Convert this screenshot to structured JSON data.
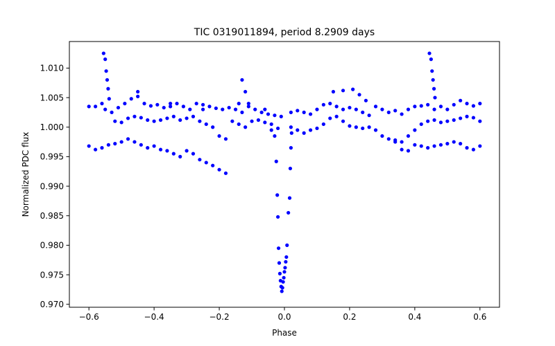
{
  "chart_data": {
    "type": "scatter",
    "title": "TIC 0319011894, period 8.2909 days",
    "xlabel": "Phase",
    "ylabel": "Normalized PDC flux",
    "xlim": [
      -0.66,
      0.66
    ],
    "ylim": [
      0.9695,
      1.0145
    ],
    "xticks": [
      -0.6,
      -0.4,
      -0.2,
      0.0,
      0.2,
      0.4,
      0.6
    ],
    "xtick_labels": [
      "−0.6",
      "−0.4",
      "−0.2",
      "0.0",
      "0.2",
      "0.4",
      "0.6"
    ],
    "yticks": [
      0.97,
      0.975,
      0.98,
      0.985,
      0.99,
      0.995,
      1.0,
      1.005,
      1.01
    ],
    "ytick_labels": [
      "0.970",
      "0.975",
      "0.980",
      "0.985",
      "0.990",
      "0.995",
      "1.000",
      "1.005",
      "1.010"
    ],
    "grid": false,
    "marker_color": "#0000ff",
    "series": [
      {
        "points": [
          [
            -0.6,
            1.0035
          ],
          [
            -0.58,
            1.0035
          ],
          [
            -0.56,
            1.004
          ],
          [
            -0.55,
            1.003
          ],
          [
            -0.53,
            1.0025
          ],
          [
            -0.51,
            1.0033
          ],
          [
            -0.49,
            1.004
          ],
          [
            -0.47,
            1.0048
          ],
          [
            -0.45,
            1.0052
          ],
          [
            -0.43,
            1.004
          ],
          [
            -0.41,
            1.0036
          ],
          [
            -0.39,
            1.0038
          ],
          [
            -0.37,
            1.0033
          ],
          [
            -0.35,
            1.0035
          ],
          [
            -0.33,
            1.004
          ],
          [
            -0.31,
            1.0035
          ],
          [
            -0.29,
            1.003
          ],
          [
            -0.27,
            1.004
          ],
          [
            -0.25,
            1.0038
          ],
          [
            -0.23,
            1.0035
          ],
          [
            -0.21,
            1.0032
          ],
          [
            -0.19,
            1.003
          ],
          [
            -0.17,
            1.0033
          ],
          [
            -0.15,
            1.003
          ],
          [
            -0.13,
            1.0025
          ],
          [
            -0.11,
            1.0035
          ],
          [
            -0.09,
            1.003
          ],
          [
            -0.07,
            1.0025
          ],
          [
            -0.05,
            1.0022
          ],
          [
            -0.03,
            1.002
          ],
          [
            -0.01,
            1.0018
          ],
          [
            0.02,
            1.0025
          ],
          [
            0.04,
            1.0028
          ],
          [
            0.06,
            1.0025
          ],
          [
            0.08,
            1.0022
          ],
          [
            0.1,
            1.003
          ],
          [
            0.12,
            1.0038
          ],
          [
            0.14,
            1.004
          ],
          [
            0.16,
            1.0035
          ],
          [
            0.18,
            1.003
          ],
          [
            0.2,
            1.0033
          ],
          [
            0.22,
            1.003
          ],
          [
            0.24,
            1.0025
          ],
          [
            0.26,
            1.002
          ],
          [
            0.28,
            1.0035
          ],
          [
            0.3,
            1.003
          ],
          [
            0.32,
            1.0025
          ],
          [
            0.34,
            1.0028
          ],
          [
            0.36,
            1.0022
          ],
          [
            0.38,
            1.003
          ],
          [
            0.4,
            1.0035
          ],
          [
            0.42,
            1.0036
          ],
          [
            0.44,
            1.0038
          ],
          [
            0.46,
            1.003
          ],
          [
            0.48,
            1.0035
          ],
          [
            0.5,
            1.003
          ],
          [
            0.52,
            1.0038
          ],
          [
            0.54,
            1.0045
          ],
          [
            0.56,
            1.004
          ],
          [
            0.58,
            1.0036
          ],
          [
            0.6,
            1.004
          ]
        ]
      },
      {
        "points": [
          [
            -0.52,
            1.001
          ],
          [
            -0.5,
            1.0008
          ],
          [
            -0.48,
            1.0015
          ],
          [
            -0.46,
            1.0018
          ],
          [
            -0.44,
            1.0016
          ],
          [
            -0.42,
            1.0012
          ],
          [
            -0.4,
            1.001
          ],
          [
            -0.38,
            1.0012
          ],
          [
            -0.36,
            1.0015
          ],
          [
            -0.34,
            1.0018
          ],
          [
            -0.32,
            1.0012
          ],
          [
            -0.3,
            1.0015
          ],
          [
            -0.28,
            1.0018
          ],
          [
            -0.26,
            1.001
          ],
          [
            -0.24,
            1.0005
          ],
          [
            -0.22,
            1.0
          ],
          [
            -0.2,
            0.9985
          ],
          [
            -0.18,
            0.998
          ],
          [
            -0.16,
            1.001
          ],
          [
            -0.14,
            1.0005
          ],
          [
            -0.12,
            1.0
          ],
          [
            -0.1,
            1.001
          ],
          [
            -0.08,
            1.0012
          ],
          [
            -0.06,
            1.0008
          ],
          [
            -0.04,
            1.0005
          ],
          [
            -0.02,
            0.9998
          ],
          [
            0.02,
            1.0
          ],
          [
            0.04,
            0.9995
          ],
          [
            0.06,
            0.999
          ],
          [
            0.08,
            0.9995
          ],
          [
            0.1,
            0.9998
          ],
          [
            0.12,
            1.0005
          ],
          [
            0.14,
            1.0015
          ],
          [
            0.16,
            1.0018
          ],
          [
            0.18,
            1.001
          ],
          [
            0.2,
            1.0002
          ],
          [
            0.22,
            1.0
          ],
          [
            0.24,
            0.9998
          ],
          [
            0.26,
            1.0
          ],
          [
            0.28,
            0.9995
          ],
          [
            0.3,
            0.9985
          ],
          [
            0.32,
            0.998
          ],
          [
            0.34,
            0.9978
          ],
          [
            0.36,
            0.9975
          ],
          [
            0.38,
            0.9985
          ],
          [
            0.4,
            0.9995
          ],
          [
            0.42,
            1.0005
          ],
          [
            0.44,
            1.001
          ],
          [
            0.46,
            1.0012
          ],
          [
            0.48,
            1.0008
          ],
          [
            0.5,
            1.001
          ],
          [
            0.52,
            1.0012
          ],
          [
            0.54,
            1.0015
          ],
          [
            0.56,
            1.0018
          ],
          [
            0.58,
            1.0016
          ],
          [
            0.6,
            1.001
          ]
        ]
      },
      {
        "points": [
          [
            -0.6,
            0.9968
          ],
          [
            -0.58,
            0.9962
          ],
          [
            -0.56,
            0.9965
          ],
          [
            -0.54,
            0.997
          ],
          [
            -0.52,
            0.9972
          ],
          [
            -0.5,
            0.9975
          ],
          [
            -0.48,
            0.998
          ],
          [
            -0.46,
            0.9975
          ],
          [
            -0.44,
            0.997
          ],
          [
            -0.42,
            0.9965
          ],
          [
            -0.4,
            0.9968
          ],
          [
            -0.38,
            0.9962
          ],
          [
            -0.36,
            0.996
          ],
          [
            -0.34,
            0.9955
          ],
          [
            -0.32,
            0.995
          ],
          [
            -0.3,
            0.996
          ],
          [
            -0.28,
            0.9955
          ],
          [
            -0.26,
            0.9945
          ],
          [
            -0.24,
            0.994
          ],
          [
            -0.22,
            0.9935
          ],
          [
            -0.2,
            0.9928
          ],
          [
            -0.18,
            0.9922
          ],
          [
            0.34,
            0.9975
          ],
          [
            0.36,
            0.9962
          ],
          [
            0.38,
            0.996
          ],
          [
            0.4,
            0.997
          ],
          [
            0.42,
            0.9968
          ],
          [
            0.44,
            0.9965
          ],
          [
            0.46,
            0.9968
          ],
          [
            0.48,
            0.997
          ],
          [
            0.5,
            0.9972
          ],
          [
            0.52,
            0.9975
          ],
          [
            0.54,
            0.9972
          ],
          [
            0.56,
            0.9965
          ],
          [
            0.58,
            0.9962
          ],
          [
            0.6,
            0.9968
          ]
        ]
      },
      {
        "points": [
          [
            -0.45,
            1.006
          ],
          [
            -0.35,
            1.004
          ],
          [
            -0.25,
            1.003
          ],
          [
            -0.14,
            1.004
          ],
          [
            -0.13,
            1.008
          ],
          [
            -0.12,
            1.006
          ],
          [
            -0.11,
            1.004
          ],
          [
            -0.06,
            1.003
          ],
          [
            0.15,
            1.006
          ],
          [
            0.18,
            1.0062
          ],
          [
            0.21,
            1.0064
          ],
          [
            0.23,
            1.0055
          ],
          [
            0.25,
            1.0045
          ]
        ]
      },
      {
        "points": [
          [
            -0.555,
            1.0125
          ],
          [
            -0.55,
            1.0115
          ],
          [
            -0.547,
            1.0095
          ],
          [
            -0.544,
            1.008
          ],
          [
            -0.541,
            1.0065
          ],
          [
            -0.538,
            1.0048
          ],
          [
            0.445,
            1.0125
          ],
          [
            0.45,
            1.0115
          ],
          [
            0.453,
            1.0095
          ],
          [
            0.456,
            1.008
          ],
          [
            0.459,
            1.0065
          ],
          [
            0.462,
            1.005
          ]
        ]
      },
      {
        "points": [
          [
            -0.04,
            0.9995
          ],
          [
            -0.03,
            0.9985
          ],
          [
            -0.025,
            0.9942
          ],
          [
            -0.022,
            0.9885
          ],
          [
            -0.02,
            0.9848
          ],
          [
            -0.018,
            0.9795
          ],
          [
            -0.016,
            0.977
          ],
          [
            -0.014,
            0.9752
          ],
          [
            -0.012,
            0.974
          ],
          [
            -0.01,
            0.973
          ],
          [
            -0.008,
            0.9722
          ],
          [
            -0.006,
            0.9728
          ],
          [
            -0.004,
            0.9738
          ],
          [
            -0.002,
            0.9745
          ],
          [
            0.0,
            0.9755
          ],
          [
            0.002,
            0.9762
          ],
          [
            0.004,
            0.9772
          ],
          [
            0.006,
            0.978
          ],
          [
            0.008,
            0.98
          ],
          [
            0.012,
            0.9855
          ],
          [
            0.016,
            0.988
          ],
          [
            0.018,
            0.993
          ],
          [
            0.02,
            0.9965
          ],
          [
            0.022,
            0.999
          ]
        ]
      }
    ]
  }
}
